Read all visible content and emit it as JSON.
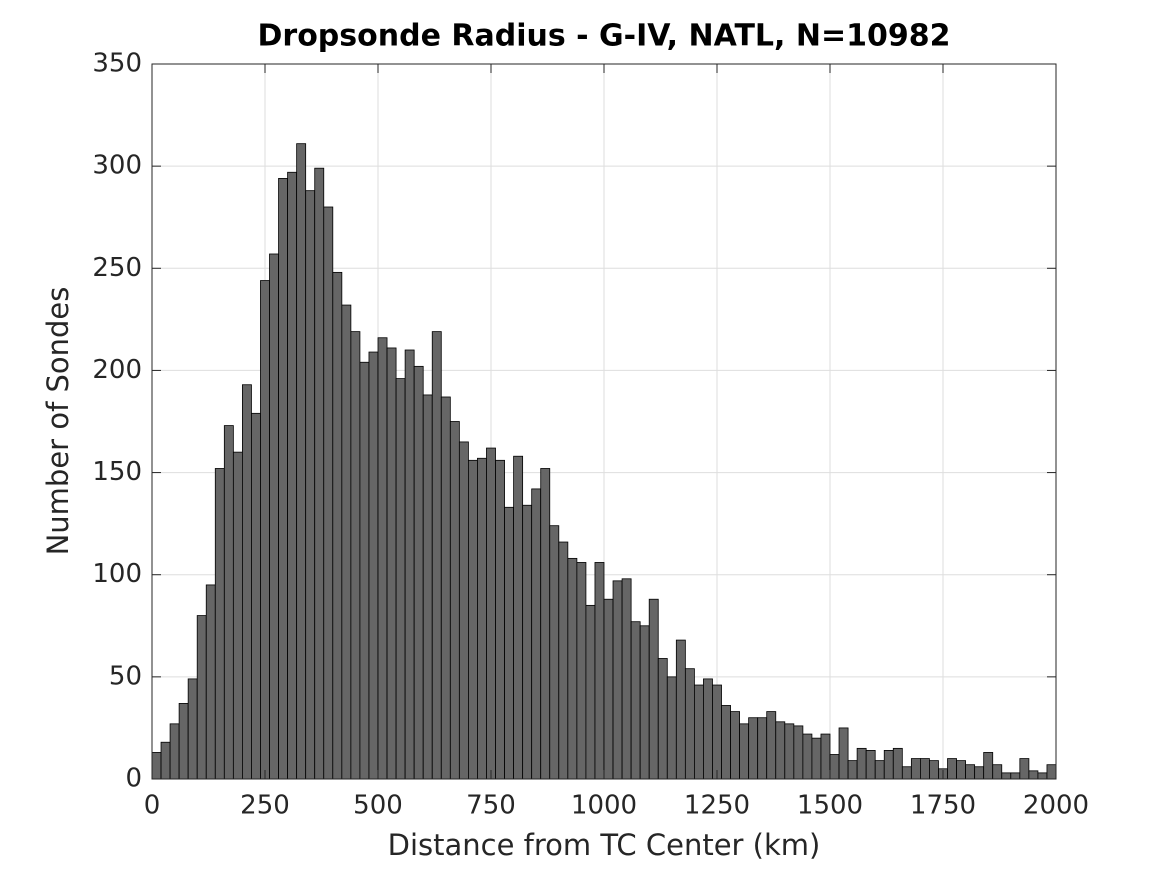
{
  "chart_data": {
    "type": "histogram",
    "title": "Dropsonde Radius - G-IV, NATL, N=10982",
    "xlabel": "Distance from TC Center (km)",
    "ylabel": "Number of Sondes",
    "bins": [
      0,
      20,
      40,
      60,
      80,
      100,
      120,
      140,
      160,
      180,
      200,
      220,
      240,
      260,
      280,
      300,
      320,
      340,
      360,
      380,
      400,
      420,
      440,
      460,
      480,
      500,
      520,
      540,
      560,
      580,
      600,
      620,
      640,
      660,
      680,
      700,
      720,
      740,
      760,
      780,
      800,
      820,
      840,
      860,
      880,
      900,
      920,
      940,
      960,
      980,
      1000,
      1020,
      1040,
      1060,
      1080,
      1100,
      1120,
      1140,
      1160,
      1180,
      1200,
      1220,
      1240,
      1260,
      1280,
      1300,
      1320,
      1340,
      1360,
      1380,
      1400,
      1420,
      1440,
      1460,
      1480,
      1500,
      1520,
      1540,
      1560,
      1580,
      1600,
      1620,
      1640,
      1660,
      1680,
      1700,
      1720,
      1740,
      1760,
      1780,
      1800,
      1820,
      1840,
      1860,
      1880,
      1900,
      1920,
      1940,
      1960,
      1980,
      2000
    ],
    "values": [
      13,
      18,
      27,
      37,
      49,
      80,
      95,
      152,
      173,
      160,
      193,
      179,
      244,
      257,
      294,
      297,
      311,
      288,
      299,
      280,
      248,
      232,
      219,
      204,
      209,
      216,
      211,
      196,
      210,
      202,
      188,
      219,
      187,
      175,
      165,
      156,
      157,
      162,
      156,
      133,
      158,
      134,
      142,
      152,
      124,
      116,
      108,
      106,
      85,
      106,
      88,
      97,
      98,
      77,
      75,
      88,
      59,
      50,
      68,
      54,
      46,
      49,
      46,
      36,
      33,
      27,
      30,
      30,
      33,
      28,
      27,
      26,
      22,
      20,
      22,
      12,
      25,
      9,
      15,
      14,
      9,
      14,
      15,
      6,
      10,
      10,
      9,
      5,
      10,
      9,
      7,
      6,
      13,
      7,
      3,
      3,
      10,
      4,
      3,
      7
    ],
    "color": "#666666",
    "xlim": [
      0,
      2000
    ],
    "xticks": [
      0,
      250,
      500,
      750,
      1000,
      1250,
      1500,
      1750,
      2000
    ],
    "ylim": [
      0,
      350
    ],
    "yticks": [
      0,
      50,
      100,
      150,
      200,
      250,
      300,
      350
    ],
    "grid": true
  }
}
